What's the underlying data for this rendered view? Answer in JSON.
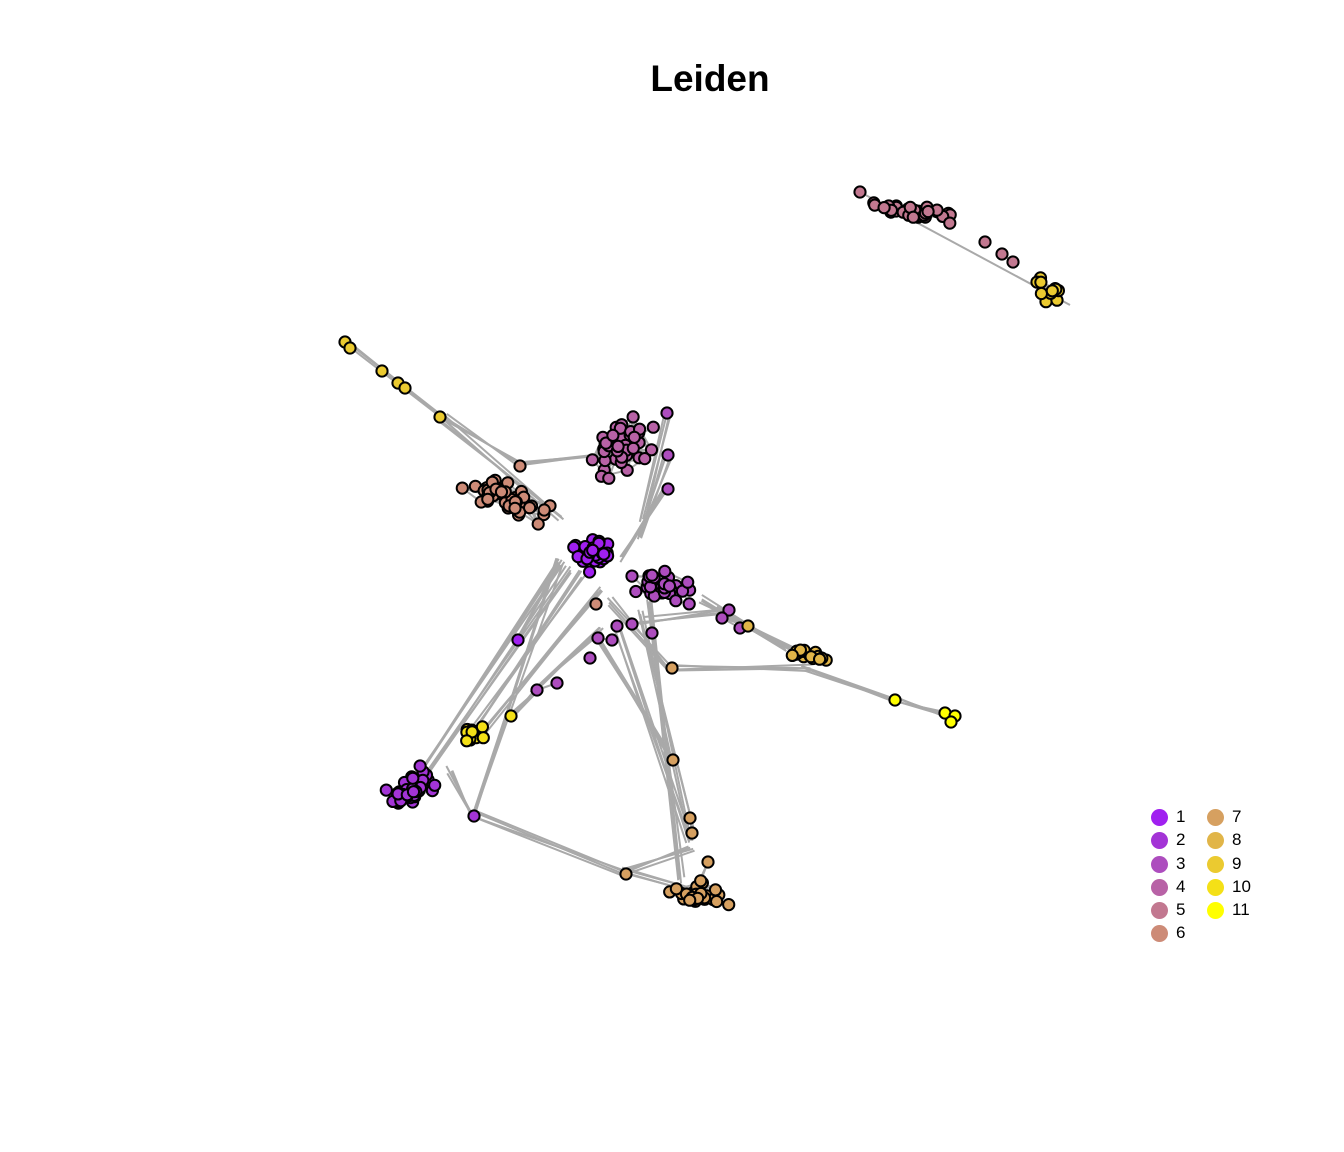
{
  "title": "Leiden",
  "legend": {
    "items": [
      {
        "label": "1",
        "color": "#A020F0"
      },
      {
        "label": "2",
        "color": "#A334D6"
      },
      {
        "label": "3",
        "color": "#AD4DBE"
      },
      {
        "label": "4",
        "color": "#B862A6"
      },
      {
        "label": "5",
        "color": "#C27890"
      },
      {
        "label": "6",
        "color": "#CD8B77"
      },
      {
        "label": "7",
        "color": "#D6A060"
      },
      {
        "label": "8",
        "color": "#E1B548"
      },
      {
        "label": "9",
        "color": "#EBCA30"
      },
      {
        "label": "10",
        "color": "#F4E017"
      },
      {
        "label": "11",
        "color": "#FFFF00"
      }
    ]
  },
  "edge_color": "#A9A9A9"
}
